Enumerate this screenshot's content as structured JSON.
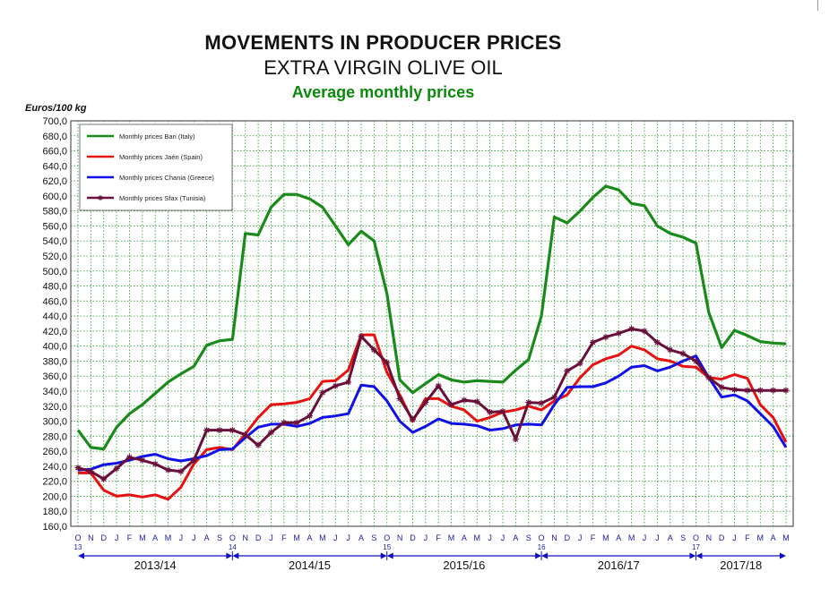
{
  "header": {
    "title": "MOVEMENTS IN PRODUCER PRICES",
    "subtitle": "EXTRA VIRGIN OLIVE OIL",
    "subtitle2": "Average monthly prices"
  },
  "chart_data": {
    "type": "line",
    "title": "MOVEMENTS IN PRODUCER PRICES",
    "ylabel": "Euros/100 kg",
    "ylim": [
      160,
      700
    ],
    "ytick_step": 20,
    "grid": true,
    "legend_position": "top-left",
    "categories": [
      "O-13",
      "N",
      "D",
      "J",
      "F",
      "M",
      "A",
      "M",
      "J",
      "J",
      "A",
      "S",
      "O-14",
      "N",
      "D",
      "J",
      "F",
      "M",
      "A",
      "M",
      "J",
      "J",
      "A",
      "S",
      "O-15",
      "N",
      "D",
      "J",
      "F",
      "M",
      "A",
      "M",
      "J",
      "J",
      "A",
      "S",
      "O-16",
      "N",
      "D",
      "J",
      "F",
      "M",
      "A",
      "M",
      "J",
      "J",
      "A",
      "S",
      "O-17",
      "N",
      "D",
      "J",
      "F",
      "M",
      "A",
      "M"
    ],
    "month_labels": [
      "O",
      "N",
      "D",
      "J",
      "F",
      "M",
      "A",
      "M",
      "J",
      "J",
      "A",
      "S",
      "O",
      "N",
      "D",
      "J",
      "F",
      "M",
      "A",
      "M",
      "J",
      "J",
      "A",
      "S",
      "O",
      "N",
      "D",
      "J",
      "F",
      "M",
      "A",
      "M",
      "J",
      "J",
      "A",
      "S",
      "O",
      "N",
      "D",
      "J",
      "F",
      "M",
      "A",
      "M",
      "J",
      "J",
      "A",
      "S",
      "O",
      "N",
      "D",
      "J",
      "F",
      "M",
      "A",
      "M"
    ],
    "year_labels": [
      {
        "index": 0,
        "text": "13"
      },
      {
        "index": 12,
        "text": "14"
      },
      {
        "index": 24,
        "text": "15"
      },
      {
        "index": 36,
        "text": "16"
      },
      {
        "index": 48,
        "text": "17"
      }
    ],
    "seasons": [
      {
        "label": "2013/14",
        "start": 0,
        "end": 12
      },
      {
        "label": "2014/15",
        "start": 12,
        "end": 24
      },
      {
        "label": "2015/16",
        "start": 24,
        "end": 36
      },
      {
        "label": "2016/17",
        "start": 36,
        "end": 48
      },
      {
        "label": "2017/18",
        "start": 48,
        "end": 55
      }
    ],
    "series": [
      {
        "name": "Monthly prices Bari (Italy)",
        "color": "#1a8a1a",
        "marker": "none",
        "values": [
          288,
          265,
          263,
          292,
          310,
          322,
          337,
          352,
          363,
          373,
          401,
          407,
          409,
          550,
          548,
          585,
          602,
          602,
          596,
          585,
          560,
          535,
          553,
          540,
          470,
          355,
          338,
          350,
          362,
          355,
          352,
          354,
          353,
          352,
          368,
          382,
          440,
          572,
          564,
          580,
          598,
          613,
          608,
          590,
          587,
          560,
          550,
          545,
          537,
          445,
          398,
          421,
          414,
          406,
          404,
          403
        ]
      },
      {
        "name": "Monthly prices Jaén (Spain)",
        "color": "#e81010",
        "marker": "none",
        "values": [
          231,
          231,
          208,
          200,
          202,
          199,
          202,
          196,
          212,
          243,
          262,
          265,
          262,
          283,
          305,
          322,
          323,
          325,
          330,
          353,
          354,
          368,
          415,
          415,
          365,
          335,
          300,
          330,
          330,
          320,
          315,
          300,
          305,
          312,
          315,
          320,
          315,
          327,
          335,
          358,
          375,
          383,
          388,
          400,
          395,
          383,
          380,
          373,
          372,
          358,
          356,
          362,
          357,
          322,
          305,
          272
        ]
      },
      {
        "name": "Monthly prices Chania (Greece)",
        "color": "#1010e8",
        "marker": "none",
        "values": [
          235,
          236,
          242,
          244,
          248,
          253,
          256,
          250,
          247,
          250,
          254,
          262,
          263,
          278,
          292,
          296,
          296,
          293,
          297,
          305,
          307,
          310,
          348,
          346,
          327,
          300,
          285,
          293,
          303,
          297,
          296,
          294,
          288,
          290,
          295,
          296,
          295,
          322,
          345,
          346,
          346,
          351,
          360,
          372,
          374,
          367,
          372,
          380,
          387,
          358,
          332,
          335,
          327,
          310,
          293,
          265
        ]
      },
      {
        "name": "Monthly prices Sfax (Tunisia)",
        "color": "#6a0f3a",
        "marker": "star",
        "values": [
          238,
          233,
          223,
          237,
          252,
          248,
          243,
          235,
          233,
          248,
          288,
          288,
          288,
          282,
          268,
          285,
          298,
          298,
          307,
          338,
          347,
          352,
          413,
          395,
          378,
          330,
          302,
          325,
          347,
          322,
          328,
          326,
          312,
          313,
          276,
          325,
          324,
          332,
          367,
          377,
          405,
          412,
          417,
          423,
          420,
          405,
          395,
          390,
          380,
          358,
          345,
          342,
          341,
          341,
          341,
          341
        ]
      }
    ]
  }
}
